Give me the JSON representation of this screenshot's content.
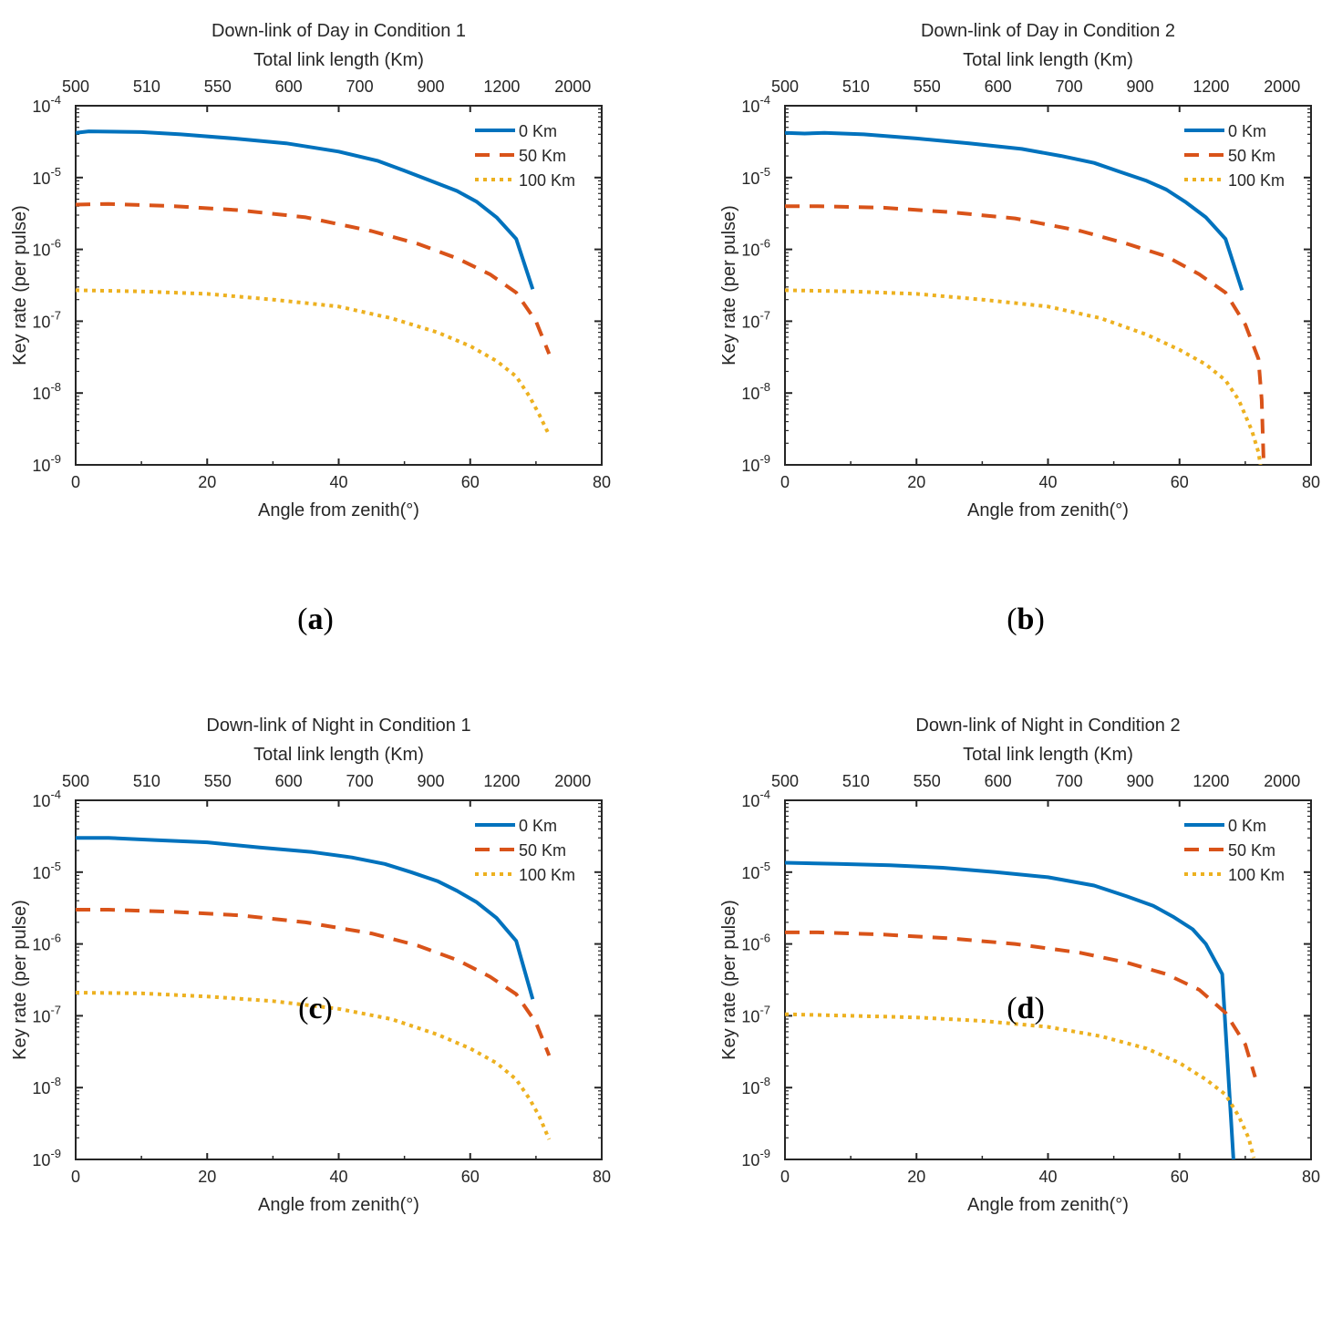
{
  "figure": {
    "colors": {
      "axis": "#262626",
      "s0": "#0072BD",
      "s50": "#D95319",
      "s100": "#EDB120"
    },
    "shared": {
      "xlabel": "Angle from zenith(°)",
      "ylabel": "Key rate (per pulse)",
      "top_axis_label": "Total link length (Km)",
      "top_ticks": [
        "500",
        "510",
        "550",
        "600",
        "700",
        "900",
        "1200",
        "2000"
      ],
      "x_ticks": [
        "0",
        "20",
        "40",
        "60",
        "80"
      ],
      "y_ticks": [
        {
          "base": "10",
          "exp": "-9"
        },
        {
          "base": "10",
          "exp": "-8"
        },
        {
          "base": "10",
          "exp": "-7"
        },
        {
          "base": "10",
          "exp": "-6"
        },
        {
          "base": "10",
          "exp": "-5"
        },
        {
          "base": "10",
          "exp": "-4"
        }
      ],
      "legend": [
        "0 Km",
        "50 Km",
        "100 Km"
      ]
    }
  },
  "chart_data": [
    {
      "type": "line",
      "panel": "a",
      "title": "Down-link of Day in Condition 1",
      "xlim": [
        0,
        80
      ],
      "ylim_log10": [
        -9,
        -4
      ],
      "series": [
        {
          "name": "0 Km",
          "x": [
            0,
            2,
            10,
            16,
            24,
            32,
            40,
            46,
            50,
            54,
            58,
            61,
            64,
            67,
            69.5
          ],
          "y": [
            4.2e-05,
            4.4e-05,
            4.3e-05,
            4e-05,
            3.5e-05,
            3e-05,
            2.3e-05,
            1.7e-05,
            1.25e-05,
            9e-06,
            6.5e-06,
            4.6e-06,
            2.8e-06,
            1.4e-06,
            2.8e-07
          ]
        },
        {
          "name": "50 Km",
          "x": [
            0,
            5,
            15,
            25,
            35,
            45,
            52,
            58,
            63,
            67,
            70,
            72
          ],
          "y": [
            4.2e-06,
            4.3e-06,
            4e-06,
            3.5e-06,
            2.8e-06,
            1.8e-06,
            1.2e-06,
            7.5e-07,
            4.5e-07,
            2.5e-07,
            1e-07,
            3.5e-08
          ]
        },
        {
          "name": "100 Km",
          "x": [
            0,
            10,
            20,
            30,
            40,
            48,
            55,
            60,
            64,
            67,
            69,
            70.5,
            72
          ],
          "y": [
            2.7e-07,
            2.6e-07,
            2.4e-07,
            2e-07,
            1.6e-07,
            1.1e-07,
            7e-08,
            4.5e-08,
            2.8e-08,
            1.7e-08,
            9e-09,
            5e-09,
            2.6e-09
          ]
        }
      ]
    },
    {
      "type": "line",
      "panel": "b",
      "title": "Down-link of Day in Condition 2",
      "xlim": [
        0,
        80
      ],
      "ylim_log10": [
        -9,
        -4
      ],
      "series": [
        {
          "name": "0 Km",
          "x": [
            0,
            3,
            6,
            12,
            20,
            28,
            36,
            42,
            47,
            51,
            55,
            58,
            61,
            64,
            67,
            69.5
          ],
          "y": [
            4.2e-05,
            4.1e-05,
            4.2e-05,
            4e-05,
            3.5e-05,
            3e-05,
            2.5e-05,
            2e-05,
            1.6e-05,
            1.2e-05,
            9e-06,
            6.8e-06,
            4.5e-06,
            2.8e-06,
            1.4e-06,
            2.7e-07
          ]
        },
        {
          "name": "50 Km",
          "x": [
            0,
            5,
            15,
            25,
            35,
            45,
            52,
            58,
            63,
            67,
            70,
            72,
            72.5,
            72.8
          ],
          "y": [
            4e-06,
            4e-06,
            3.8e-06,
            3.3e-06,
            2.7e-06,
            1.8e-06,
            1.2e-06,
            8e-07,
            4.5e-07,
            2.5e-07,
            9e-08,
            3e-08,
            8e-09,
            1e-09
          ]
        },
        {
          "name": "100 Km",
          "x": [
            0,
            10,
            20,
            30,
            40,
            48,
            55,
            60,
            64,
            67,
            69,
            71,
            72,
            72.3
          ],
          "y": [
            2.7e-07,
            2.6e-07,
            2.4e-07,
            2e-07,
            1.6e-07,
            1.1e-07,
            6.5e-08,
            4e-08,
            2.5e-08,
            1.5e-08,
            8e-09,
            3e-09,
            1.5e-09,
            1e-09
          ]
        }
      ]
    },
    {
      "type": "line",
      "panel": "c",
      "title": "Down-link of Night in Condition 1",
      "xlim": [
        0,
        80
      ],
      "ylim_log10": [
        -9,
        -4
      ],
      "series": [
        {
          "name": "0 Km",
          "x": [
            0,
            5,
            12,
            20,
            28,
            36,
            42,
            47,
            51,
            55,
            58,
            61,
            64,
            67,
            69.5
          ],
          "y": [
            3e-05,
            3e-05,
            2.8e-05,
            2.6e-05,
            2.2e-05,
            1.9e-05,
            1.6e-05,
            1.3e-05,
            1e-05,
            7.5e-06,
            5.5e-06,
            3.8e-06,
            2.3e-06,
            1.1e-06,
            1.7e-07
          ]
        },
        {
          "name": "50 Km",
          "x": [
            0,
            5,
            15,
            25,
            35,
            45,
            52,
            58,
            63,
            67,
            70,
            72
          ],
          "y": [
            3e-06,
            3e-06,
            2.8e-06,
            2.5e-06,
            2e-06,
            1.4e-06,
            9.5e-07,
            6e-07,
            3.5e-07,
            2e-07,
            8e-08,
            2.8e-08
          ]
        },
        {
          "name": "100 Km",
          "x": [
            0,
            10,
            20,
            30,
            40,
            48,
            55,
            60,
            64,
            67,
            69,
            70.5,
            72
          ],
          "y": [
            2.1e-07,
            2.05e-07,
            1.85e-07,
            1.6e-07,
            1.25e-07,
            9e-08,
            5.5e-08,
            3.5e-08,
            2.2e-08,
            1.3e-08,
            7e-09,
            4e-09,
            1.9e-09
          ]
        }
      ]
    },
    {
      "type": "line",
      "panel": "d",
      "title": "Down-link of Night in Condition 2",
      "xlim": [
        0,
        80
      ],
      "ylim_log10": [
        -9,
        -4
      ],
      "series": [
        {
          "name": "0 Km",
          "x": [
            0,
            8,
            16,
            24,
            32,
            40,
            47,
            52,
            56,
            59,
            62,
            64,
            66.5,
            68.2
          ],
          "y": [
            1.35e-05,
            1.3e-05,
            1.25e-05,
            1.15e-05,
            1e-05,
            8.5e-06,
            6.5e-06,
            4.6e-06,
            3.4e-06,
            2.4e-06,
            1.6e-06,
            1e-06,
            3.8e-07,
            1e-09
          ]
        },
        {
          "name": "50 Km",
          "x": [
            0,
            5,
            15,
            25,
            35,
            45,
            52,
            58,
            63,
            67,
            70,
            71.5
          ],
          "y": [
            1.45e-06,
            1.45e-06,
            1.35e-06,
            1.2e-06,
            1e-06,
            7.5e-07,
            5.5e-07,
            3.8e-07,
            2.3e-07,
            1.1e-07,
            4e-08,
            1.4e-08
          ]
        },
        {
          "name": "100 Km",
          "x": [
            0,
            10,
            20,
            30,
            40,
            48,
            55,
            60,
            64,
            67,
            69,
            70.5,
            71.3
          ],
          "y": [
            1.05e-07,
            1e-07,
            9.5e-08,
            8.5e-08,
            7e-08,
            5.2e-08,
            3.5e-08,
            2.2e-08,
            1.3e-08,
            8e-09,
            4e-09,
            2e-09,
            1.05e-09
          ]
        }
      ]
    }
  ],
  "panel_labels": [
    {
      "open": "(",
      "letter": "a",
      "close": ")"
    },
    {
      "open": "(",
      "letter": "b",
      "close": ")"
    },
    {
      "open": "(",
      "letter": "c",
      "close": ")"
    },
    {
      "open": "(",
      "letter": "d",
      "close": ")"
    }
  ]
}
